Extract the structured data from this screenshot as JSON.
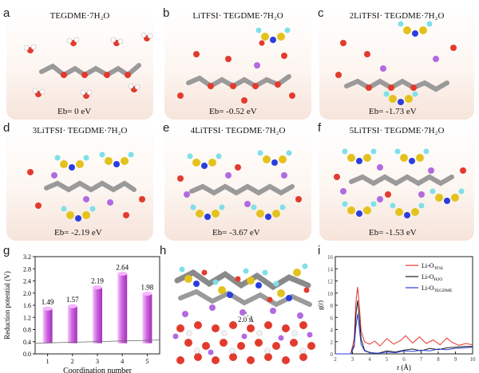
{
  "panels": {
    "a": {
      "label": "a",
      "title": "TEGDME·7H₂O",
      "energy": "Eb= 0 eV"
    },
    "b": {
      "label": "b",
      "title": "LiTFSI· TEGDME·7H₂O",
      "energy": "Eb= -0.52 eV"
    },
    "c": {
      "label": "c",
      "title": "2LiTFSI· TEGDME·7H₂O",
      "energy": "Eb= -1.73 eV"
    },
    "d": {
      "label": "d",
      "title": "3LiTFSI· TEGDME·7H₂O",
      "energy": "Eb= -2.19 eV"
    },
    "e": {
      "label": "e",
      "title": "4LiTFSI· TEGDME·7H₂O",
      "energy": "Eb= -3.67 eV"
    },
    "f": {
      "label": "f",
      "title": "5LiTFSI· TEGDME·7H₂O",
      "energy": "Eb= -1.53 eV"
    }
  },
  "panel_g": {
    "label": "g"
  },
  "panel_h": {
    "label": "h",
    "annotation": "2.0 Å"
  },
  "panel_i": {
    "label": "i"
  },
  "chart_data": [
    {
      "type": "bar",
      "panel": "g",
      "categories": [
        "1",
        "2",
        "3",
        "4",
        "5"
      ],
      "values": [
        1.49,
        1.57,
        2.19,
        2.64,
        1.98
      ],
      "data_labels": [
        "1.49",
        "1.57",
        "2.19",
        "2.64",
        "1.98"
      ],
      "xlabel": "Coordination number",
      "ylabel": "Reduction potential (V)",
      "ylim": [
        0,
        3.2
      ],
      "yticks": [
        "0.0",
        "0.4",
        "0.8",
        "1.2",
        "1.6",
        "2.0",
        "2.4",
        "2.8",
        "3.2"
      ],
      "bar_color": "#cc66dd"
    },
    {
      "type": "line",
      "panel": "i",
      "xlabel": "r (Å)",
      "ylabel": "g(r)",
      "xlim": [
        2,
        10
      ],
      "ylim": [
        0,
        16
      ],
      "xticks": [
        "2",
        "3",
        "4",
        "5",
        "6",
        "7",
        "8",
        "9",
        "10"
      ],
      "yticks": [
        "0",
        "2",
        "4",
        "6",
        "8",
        "10",
        "12",
        "14",
        "16"
      ],
      "legend_position": "top-right",
      "series": [
        {
          "name": "Li-O",
          "sub": "TFSI",
          "color": "#e8342c",
          "x": [
            2.0,
            2.9,
            3.1,
            3.2,
            3.3,
            3.4,
            3.5,
            3.7,
            4.0,
            4.3,
            4.6,
            5.0,
            5.4,
            5.8,
            6.1,
            6.5,
            6.9,
            7.3,
            7.7,
            8.1,
            8.5,
            8.8,
            9.2,
            9.6,
            10.0
          ],
          "y": [
            0,
            0,
            2.5,
            8.5,
            11.0,
            8.0,
            3.8,
            2.0,
            1.6,
            2.1,
            1.3,
            2.5,
            1.6,
            2.2,
            3.0,
            1.8,
            2.8,
            1.7,
            2.3,
            1.5,
            2.6,
            1.9,
            1.4,
            1.7,
            1.5
          ]
        },
        {
          "name": "Li-O",
          "sub": "H2O",
          "color": "#1a1a1a",
          "x": [
            2.0,
            2.9,
            3.1,
            3.2,
            3.3,
            3.4,
            3.5,
            3.7,
            4.0,
            4.5,
            5.0,
            5.5,
            6.0,
            6.5,
            7.0,
            7.5,
            8.0,
            8.5,
            9.0,
            9.5,
            10.0
          ],
          "y": [
            0,
            0,
            1.5,
            6.5,
            8.8,
            6.0,
            2.5,
            0.6,
            0.2,
            0.1,
            0.5,
            0.3,
            0.6,
            0.8,
            0.5,
            0.9,
            0.7,
            1.0,
            1.1,
            1.2,
            1.2
          ]
        },
        {
          "name": "Li-O",
          "sub": "TEGDME",
          "color": "#2b3fd8",
          "x": [
            2.0,
            2.9,
            3.1,
            3.2,
            3.3,
            3.4,
            3.5,
            3.7,
            4.0,
            4.5,
            5.0,
            5.5,
            6.0,
            6.5,
            7.0,
            7.5,
            8.0,
            8.5,
            9.0,
            9.5,
            10.0
          ],
          "y": [
            0,
            0,
            1.2,
            4.5,
            6.6,
            4.2,
            1.6,
            0.5,
            0.2,
            0.1,
            0.3,
            0.2,
            0.5,
            0.4,
            0.6,
            0.5,
            0.8,
            0.7,
            0.9,
            1.0,
            1.1
          ]
        }
      ]
    }
  ]
}
